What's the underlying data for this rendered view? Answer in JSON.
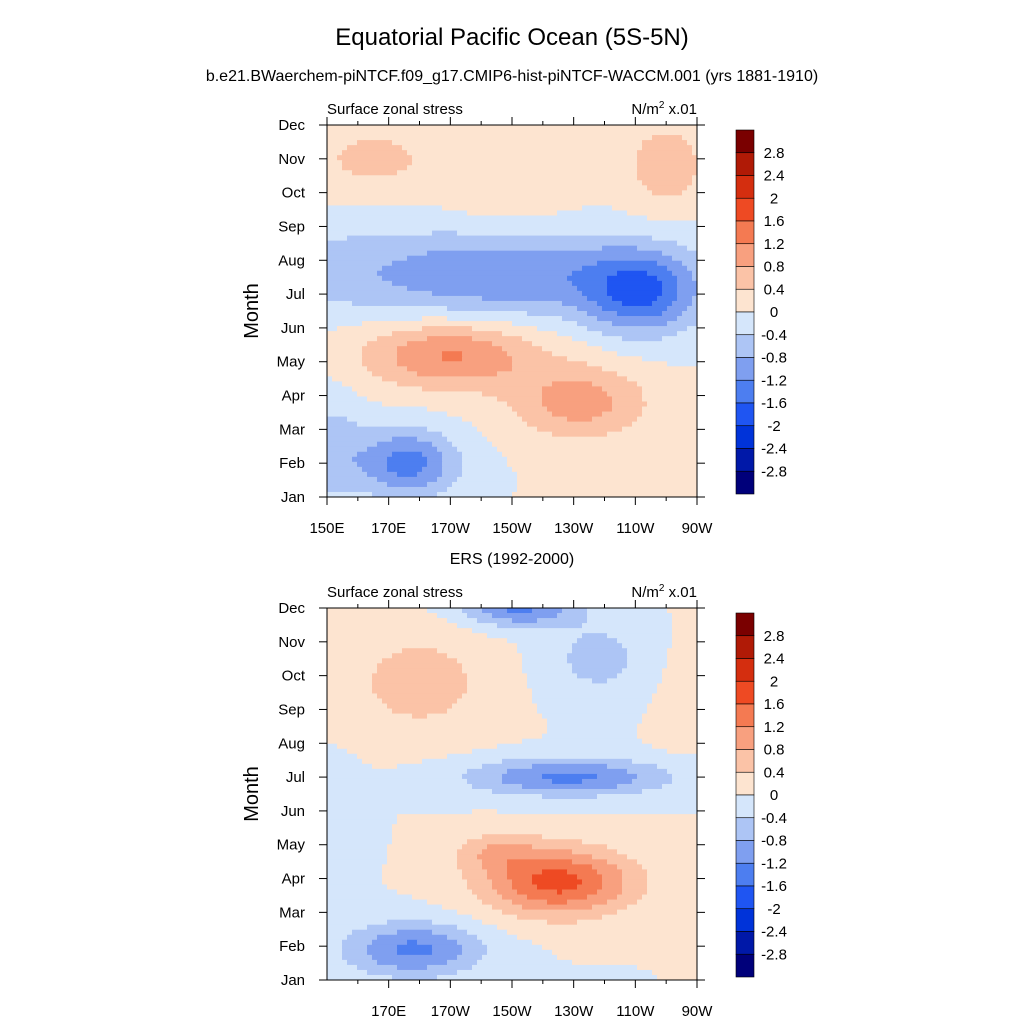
{
  "page": {
    "title": "Equatorial Pacific Ocean (5S-5N)",
    "subtitle": "b.e21.BWaerchem-piNTCF.f09_g17.CMIP6-hist-piNTCF-WACCM.001 (yrs 1881-1910)"
  },
  "chart_data": [
    {
      "type": "heatmap",
      "title": "",
      "left_label": "Surface zonal stress",
      "right_label_base": "N/m",
      "right_label_sup": "2",
      "right_label_tail": " x.01",
      "ylabel": "Month",
      "xlabel": "",
      "x_ticks": [
        "150E",
        "170E",
        "170W",
        "150W",
        "130W",
        "110W",
        "90W"
      ],
      "y_ticks": [
        "Jan",
        "Feb",
        "Mar",
        "Apr",
        "May",
        "Jun",
        "Jul",
        "Aug",
        "Sep",
        "Oct",
        "Nov",
        "Dec"
      ],
      "xlim": [
        150,
        270
      ],
      "levels": [
        -2.8,
        -2.4,
        -2.0,
        -1.6,
        -1.2,
        -0.8,
        -0.4,
        0,
        0.4,
        0.8,
        1.2,
        1.6,
        2.0,
        2.4,
        2.8
      ],
      "colors": [
        "#00007a",
        "#0018a8",
        "#0033d9",
        "#1f55f2",
        "#4d7ef0",
        "#7f9ff0",
        "#adc5f5",
        "#d5e6fb",
        "#fde4d0",
        "#fbc3a7",
        "#f8a07f",
        "#f47a52",
        "#ee4a23",
        "#d42e0f",
        "#b01a06",
        "#7a0000"
      ],
      "features": [
        {
          "lon": 205,
          "month": 7.6,
          "slon": 55,
          "smon": 1.3,
          "amp": -1.2
        },
        {
          "lon": 252,
          "month": 7.0,
          "slon": 18,
          "smon": 1.2,
          "amp": -1.4
        },
        {
          "lon": 176,
          "month": 2.0,
          "slon": 16,
          "smon": 1.0,
          "amp": -1.4
        },
        {
          "lon": 152,
          "month": 2.4,
          "slon": 10,
          "smon": 1.6,
          "amp": -0.6
        },
        {
          "lon": 190,
          "month": 5.2,
          "slon": 28,
          "smon": 1.0,
          "amp": 1.25
        },
        {
          "lon": 232,
          "month": 3.8,
          "slon": 22,
          "smon": 1.1,
          "amp": 1.0
        },
        {
          "lon": 165,
          "month": 11.0,
          "slon": 20,
          "smon": 1.0,
          "amp": 0.55
        },
        {
          "lon": 260,
          "month": 10.8,
          "slon": 14,
          "smon": 1.4,
          "amp": 0.65
        },
        {
          "lon": 210,
          "month": 10.0,
          "slon": 22,
          "smon": 1.5,
          "amp": 0.3
        },
        {
          "lon": 150,
          "month": 7.8,
          "slon": 14,
          "smon": 1.0,
          "amp": -0.3
        }
      ],
      "between_label": "ERS (1992-2000)"
    },
    {
      "type": "heatmap",
      "title": "ERS (1992-2000)",
      "left_label": "Surface zonal stress",
      "right_label_base": "N/m",
      "right_label_sup": "2",
      "right_label_tail": " x.01",
      "ylabel": "Month",
      "xlabel": "",
      "x_ticks": [
        "170E",
        "170W",
        "150W",
        "130W",
        "110W",
        "90W"
      ],
      "x_tick_lons": [
        170,
        190,
        210,
        230,
        250,
        270
      ],
      "y_ticks": [
        "Jan",
        "Feb",
        "Mar",
        "Apr",
        "May",
        "Jun",
        "Jul",
        "Aug",
        "Sep",
        "Oct",
        "Nov",
        "Dec"
      ],
      "xlim": [
        150,
        270
      ],
      "levels": [
        -2.8,
        -2.4,
        -2.0,
        -1.6,
        -1.2,
        -0.8,
        -0.4,
        0,
        0.4,
        0.8,
        1.2,
        1.6,
        2.0,
        2.4,
        2.8
      ],
      "colors": [
        "#00007a",
        "#0018a8",
        "#0033d9",
        "#1f55f2",
        "#4d7ef0",
        "#7f9ff0",
        "#adc5f5",
        "#d5e6fb",
        "#fde4d0",
        "#fbc3a7",
        "#f8a07f",
        "#f47a52",
        "#ee4a23",
        "#d42e0f",
        "#b01a06",
        "#7a0000"
      ],
      "features": [
        {
          "lon": 225,
          "month": 3.9,
          "slon": 24,
          "smon": 1.0,
          "amp": 1.75
        },
        {
          "lon": 205,
          "month": 4.8,
          "slon": 14,
          "smon": 0.6,
          "amp": 0.6
        },
        {
          "lon": 228,
          "month": 7.0,
          "slon": 32,
          "smon": 0.55,
          "amp": -1.3
        },
        {
          "lon": 178,
          "month": 1.9,
          "slon": 22,
          "smon": 0.8,
          "amp": -1.3
        },
        {
          "lon": 212,
          "month": 12.0,
          "slon": 18,
          "smon": 0.55,
          "amp": -1.3
        },
        {
          "lon": 238,
          "month": 10.5,
          "slon": 18,
          "smon": 1.2,
          "amp": -0.55
        },
        {
          "lon": 180,
          "month": 9.8,
          "slon": 24,
          "smon": 1.6,
          "amp": 0.6
        },
        {
          "lon": 154,
          "month": 5.5,
          "slon": 8,
          "smon": 1.8,
          "amp": -0.25
        },
        {
          "lon": 265,
          "month": 9.5,
          "slon": 10,
          "smon": 1.8,
          "amp": 0.2
        }
      ]
    }
  ],
  "colorbar": {
    "labels": [
      "2.8",
      "2.4",
      "2",
      "1.6",
      "1.2",
      "0.8",
      "0.4",
      "0",
      "-0.4",
      "-0.8",
      "-1.2",
      "-1.6",
      "-2",
      "-2.4",
      "-2.8"
    ]
  }
}
